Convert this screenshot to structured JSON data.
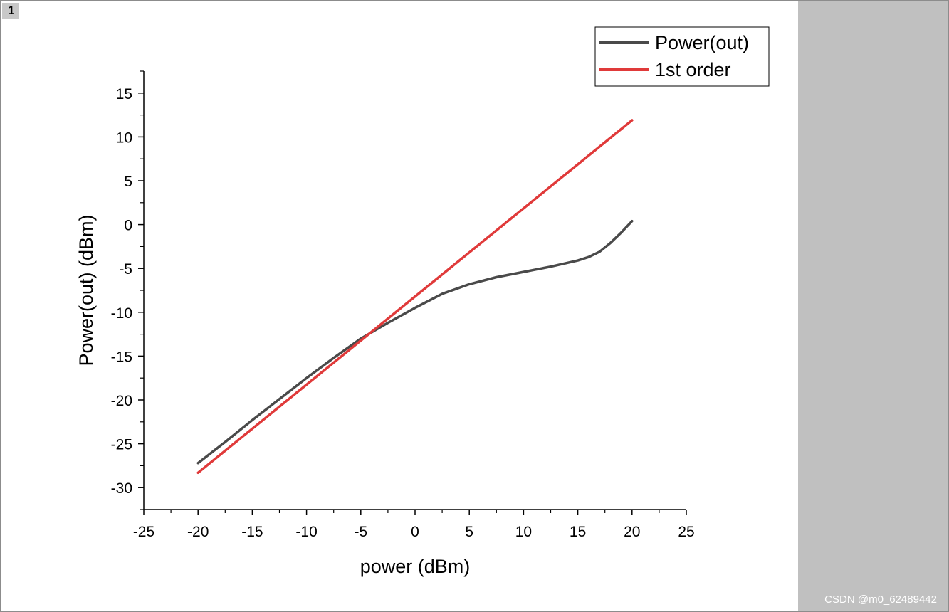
{
  "page": {
    "tab_label": "1",
    "watermark": "CSDN @m0_62489442"
  },
  "colors": {
    "series_out": "#4a4a4a",
    "series_first": "#e03a3a",
    "side_panel": "#c0c0c0"
  },
  "chart_data": {
    "type": "line",
    "title": "",
    "xlabel": "power (dBm)",
    "ylabel": "Power(out) (dBm)",
    "xlim": [
      -25,
      25
    ],
    "ylim": [
      -32.5,
      17.5
    ],
    "xticks": [
      -25,
      -20,
      -15,
      -10,
      -5,
      0,
      5,
      10,
      15,
      20,
      25
    ],
    "yticks": [
      -30,
      -25,
      -20,
      -15,
      -10,
      -5,
      0,
      5,
      10,
      15
    ],
    "legend_position": "top-right",
    "grid": false,
    "series": [
      {
        "name": "Power(out)",
        "color": "#4a4a4a",
        "x": [
          -20,
          -17.5,
          -15,
          -12.5,
          -10,
          -7.5,
          -5,
          -2.5,
          0,
          2.5,
          5,
          7.5,
          10,
          12.5,
          15,
          16,
          17,
          18,
          19,
          20
        ],
        "y": [
          -27.2,
          -24.8,
          -22.3,
          -19.9,
          -17.5,
          -15.2,
          -13.0,
          -11.2,
          -9.5,
          -7.9,
          -6.8,
          -6.0,
          -5.4,
          -4.8,
          -4.1,
          -3.7,
          -3.1,
          -2.1,
          -0.9,
          0.4
        ]
      },
      {
        "name": "1st order",
        "color": "#e03a3a",
        "x": [
          -20,
          20
        ],
        "y": [
          -28.3,
          11.9
        ]
      }
    ]
  }
}
